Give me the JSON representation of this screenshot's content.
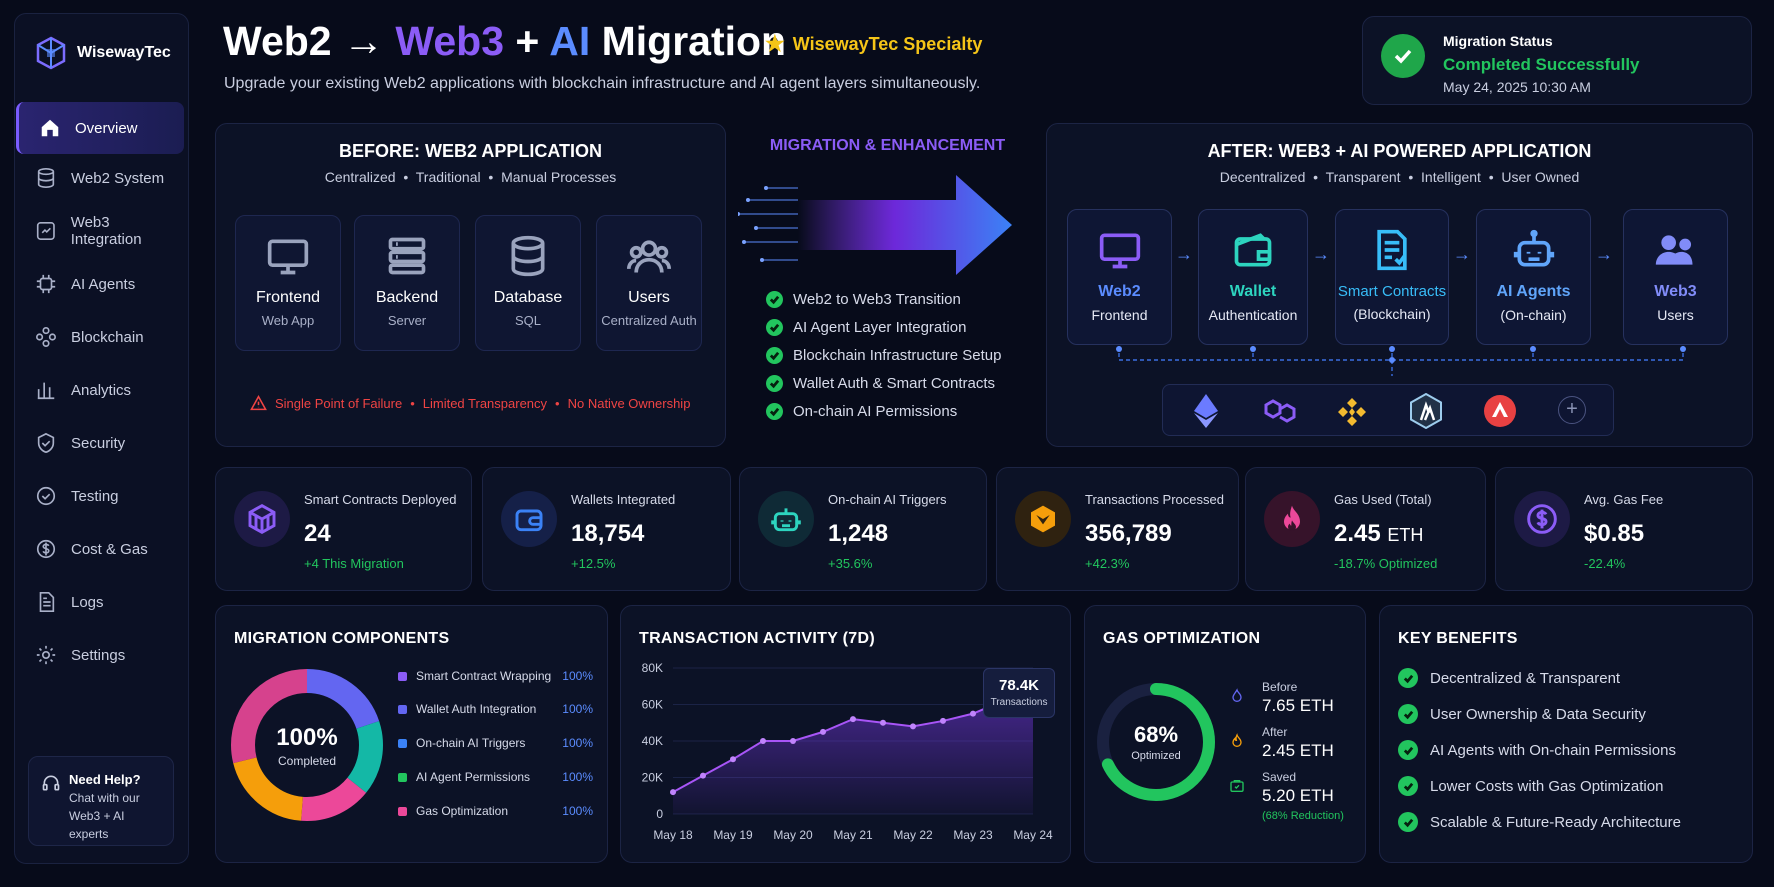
{
  "brand": {
    "name": "WisewayTec"
  },
  "sidebar": {
    "items": [
      {
        "label": "Overview"
      },
      {
        "label": "Web2 System"
      },
      {
        "label": "Web3 Integration"
      },
      {
        "label": "AI Agents"
      },
      {
        "label": "Blockchain"
      },
      {
        "label": "Analytics"
      },
      {
        "label": "Security"
      },
      {
        "label": "Testing"
      },
      {
        "label": "Cost & Gas"
      },
      {
        "label": "Logs"
      },
      {
        "label": "Settings"
      }
    ],
    "help": {
      "title": "Need Help?",
      "text": "Chat with our Web3 + AI experts"
    }
  },
  "header": {
    "title_part1": "Web2 → ",
    "title_web3": "Web3",
    "title_plus": " + ",
    "title_ai": "AI",
    "title_part2": " Migration",
    "specialty": "WisewayTec Specialty",
    "subtitle": "Upgrade your existing Web2 applications with blockchain infrastructure and AI agent layers simultaneously."
  },
  "status": {
    "label": "Migration Status",
    "value": "Completed Successfully",
    "timestamp": "May 24, 2025 10:30 AM"
  },
  "before": {
    "title": "BEFORE: WEB2 APPLICATION",
    "tags": [
      "Centralized",
      "Traditional",
      "Manual Processes"
    ],
    "cards": [
      {
        "title": "Frontend",
        "sub": "Web App",
        "icon": "monitor-icon"
      },
      {
        "title": "Backend",
        "sub": "Server",
        "icon": "server-icon"
      },
      {
        "title": "Database",
        "sub": "SQL",
        "icon": "database-icon"
      },
      {
        "title": "Users",
        "sub": "Centralized Auth",
        "icon": "users-icon"
      }
    ],
    "warnings": [
      "Single Point of Failure",
      "Limited Transparency",
      "No Native Ownership"
    ]
  },
  "migration": {
    "title": "MIGRATION & ENHANCEMENT",
    "steps": [
      "Web2 to Web3 Transition",
      "AI Agent Layer Integration",
      "Blockchain Infrastructure Setup",
      "Wallet Auth & Smart Contracts",
      "On-chain AI Permissions"
    ]
  },
  "after": {
    "title": "AFTER: WEB3 + AI POWERED APPLICATION",
    "tags": [
      "Decentralized",
      "Transparent",
      "Intelligent",
      "User Owned"
    ],
    "cards": [
      {
        "title": "Web2",
        "sub": "Frontend",
        "color": "#5b8cff"
      },
      {
        "title": "Wallet",
        "sub": "Authentication",
        "color": "#2dd4bf"
      },
      {
        "title": "Smart Contracts",
        "sub": "(Blockchain)",
        "color": "#38bdf8"
      },
      {
        "title": "AI Agents",
        "sub": "(On-chain)",
        "color": "#60a5fa"
      },
      {
        "title": "Web3",
        "sub": "Users",
        "color": "#818cf8"
      }
    ],
    "chains": [
      "ethereum-icon",
      "polygon-icon",
      "binance-icon",
      "arbitrum-icon",
      "avalanche-icon",
      "add-chain-icon"
    ]
  },
  "stats": [
    {
      "label": "Smart Contracts Deployed",
      "value": "24",
      "unit": "",
      "change": "+4 This Migration",
      "icon": "cube-icon",
      "color": "#8b5cf6"
    },
    {
      "label": "Wallets Integrated",
      "value": "18,754",
      "unit": "",
      "change": "+12.5%",
      "icon": "wallet-icon",
      "color": "#3b82f6"
    },
    {
      "label": "On-chain AI Triggers",
      "value": "1,248",
      "unit": "",
      "change": "+35.6%",
      "icon": "robot-icon",
      "color": "#2dd4bf"
    },
    {
      "label": "Transactions Processed",
      "value": "356,789",
      "unit": "",
      "change": "+42.3%",
      "icon": "transaction-icon",
      "color": "#f59e0b"
    },
    {
      "label": "Gas Used (Total)",
      "value": "2.45",
      "unit": "ETH",
      "change": "-18.7% Optimized",
      "icon": "flame-icon",
      "color": "#ec4899"
    },
    {
      "label": "Avg. Gas Fee",
      "value": "$0.85",
      "unit": "",
      "change": "-22.4%",
      "icon": "dollar-icon",
      "color": "#8b5cf6"
    }
  ],
  "components": {
    "title": "MIGRATION COMPONENTS",
    "center_value": "100%",
    "center_label": "Completed",
    "items": [
      {
        "label": "Smart Contract Wrapping",
        "value": "100%",
        "color": "#8b5cf6"
      },
      {
        "label": "Wallet Auth Integration",
        "value": "100%",
        "color": "#6366f1"
      },
      {
        "label": "On-chain AI Triggers",
        "value": "100%",
        "color": "#3b82f6"
      },
      {
        "label": "AI Agent Permissions",
        "value": "100%",
        "color": "#22c55e"
      },
      {
        "label": "Gas Optimization",
        "value": "100%",
        "color": "#ec4899"
      }
    ]
  },
  "chart_data": {
    "type": "area",
    "title": "TRANSACTION ACTIVITY (7D)",
    "x_ticks": [
      "May 18",
      "May 19",
      "May 20",
      "May 21",
      "May 22",
      "May 23",
      "May 24"
    ],
    "y_ticks": [
      "0",
      "20K",
      "40K",
      "60K",
      "80K"
    ],
    "ylim": [
      0,
      80000
    ],
    "series": [
      {
        "x": [
          0,
          0.5,
          1,
          1.5,
          2,
          2.5,
          3,
          3.5,
          4,
          4.5,
          5,
          5.5,
          6
        ],
        "values": [
          12000,
          21000,
          30000,
          40000,
          40000,
          45000,
          52000,
          50000,
          48000,
          51000,
          55000,
          62000,
          70000
        ]
      }
    ],
    "tooltip": {
      "value": "78.4K",
      "label": "Transactions"
    }
  },
  "gas": {
    "title": "GAS OPTIMIZATION",
    "percent": 0.68,
    "center_value": "68%",
    "center_label": "Optimized",
    "before_label": "Before",
    "before_value": "7.65 ETH",
    "after_label": "After",
    "after_value": "2.45 ETH",
    "saved_label": "Saved",
    "saved_value": "5.20 ETH",
    "saved_note": "(68% Reduction)"
  },
  "benefits": {
    "title": "KEY BENEFITS",
    "items": [
      "Decentralized & Transparent",
      "User Ownership & Data Security",
      "AI Agents with On-chain Permissions",
      "Lower Costs with Gas Optimization",
      "Scalable & Future-Ready Architecture"
    ]
  },
  "colors": {
    "accent": "#8b5cf6",
    "success": "#22c55e",
    "warning": "#ef4444",
    "brand_blue": "#5b8cff",
    "gold": "#f5c518"
  }
}
